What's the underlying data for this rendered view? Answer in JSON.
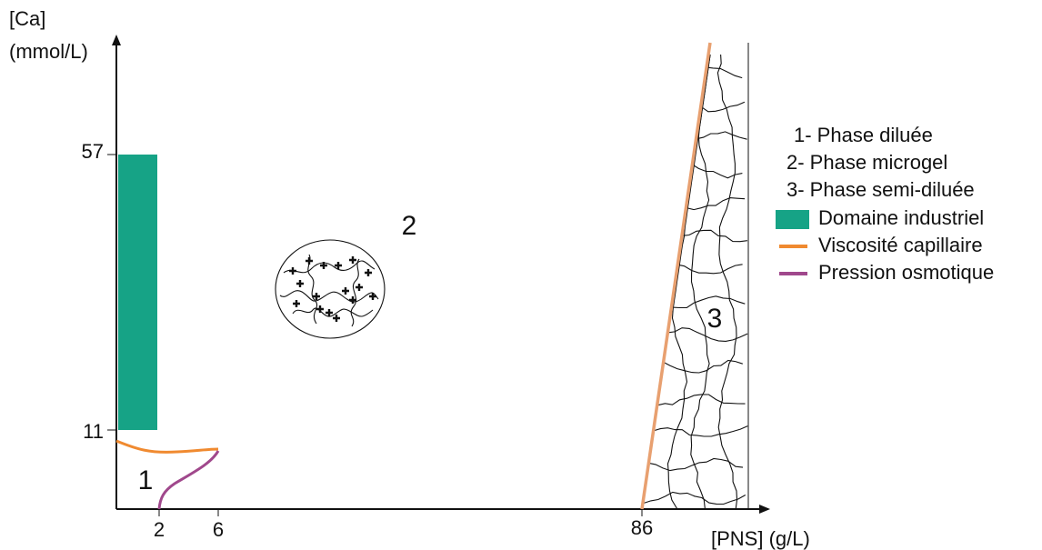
{
  "axes": {
    "y_label": [
      "[Ca]",
      "(mmol/L)"
    ],
    "x_label": "[PNS] (g/L)",
    "y_ticks": [
      "57",
      "11"
    ],
    "x_ticks": [
      "2",
      "6",
      "86"
    ]
  },
  "regions": [
    "1",
    "2",
    "3"
  ],
  "legend": [
    {
      "text": "1- Phase diluée"
    },
    {
      "text": "2- Phase microgel"
    },
    {
      "text": "3- Phase semi-diluée"
    },
    {
      "text": "Domaine industriel",
      "marker": "rect",
      "color": "#16a386"
    },
    {
      "text": "Viscosité capillaire",
      "marker": "line",
      "color": "#f08a30"
    },
    {
      "text": "Pression osmotique",
      "marker": "line",
      "color": "#a0488c"
    }
  ]
}
